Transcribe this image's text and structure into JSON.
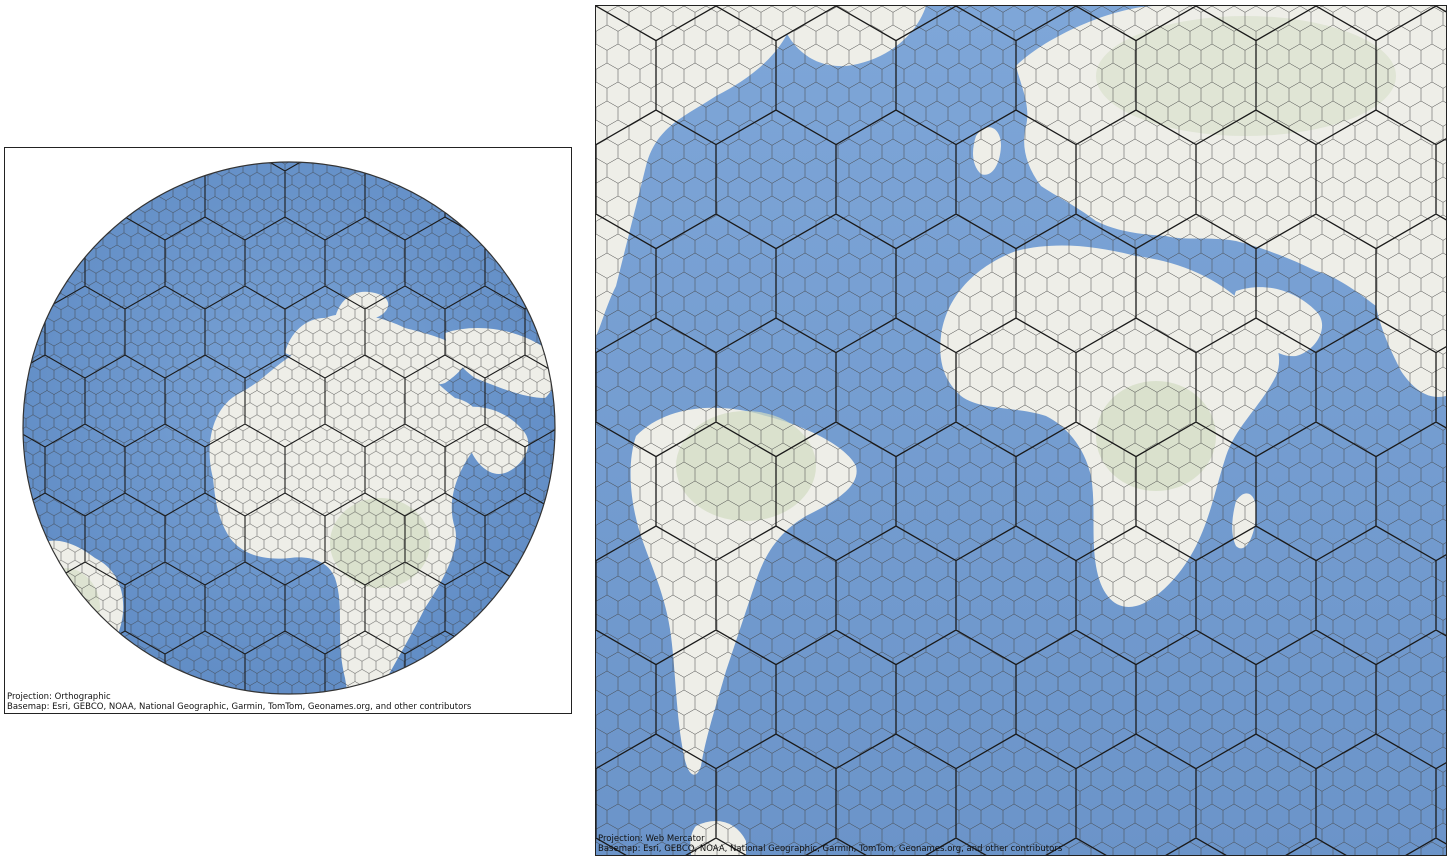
{
  "views": [
    {
      "projection_label": "Projection: Orthographic",
      "basemap_label": "Basemap: Esri, GEBCO, NOAA, National Geographic, Garmin, TomTom, Geonames.org, and other contributors"
    },
    {
      "projection_label": "Projection: Web Mercator",
      "basemap_label": "Basemap: Esri, GEBCO, NOAA, National Geographic, Garmin, TomTom, Geonames.org, and other contributors"
    }
  ],
  "colors": {
    "ocean": "#6f98cf",
    "ocean_light": "#9dbbe0",
    "land": "#eeeee8",
    "vegetation": "#d7e0c8",
    "coarse_grid": "#1a1a1a",
    "fine_grid": "#4a4a4a"
  }
}
